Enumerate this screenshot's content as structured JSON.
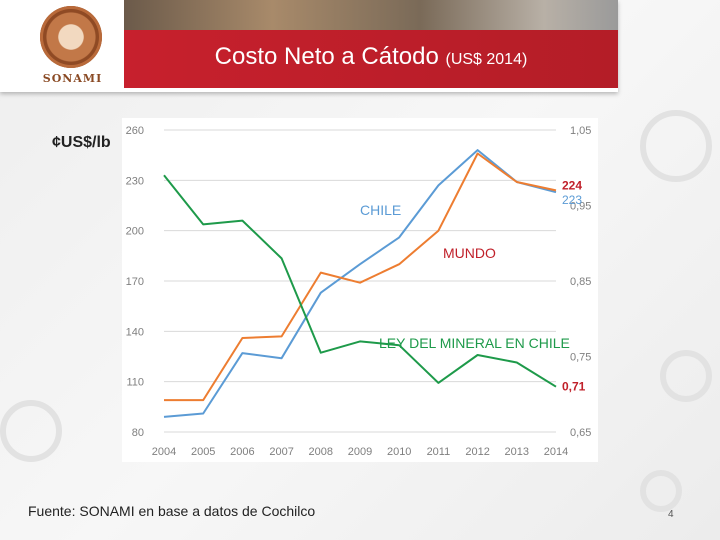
{
  "header": {
    "logo_text": "SONAMI",
    "title_main": "Costo Neto a Cátodo",
    "title_sub": "(US$ 2014)"
  },
  "unit_label": "¢US$/lb",
  "footer": {
    "source": "Fuente: SONAMI en base a datos de Cochilco",
    "page_number": "4"
  },
  "colors": {
    "chile": "#5b9bd5",
    "mundo": "#ed7d31",
    "ley": "#1e9a4a",
    "title_band": "#c7202d",
    "label_red": "#c0202a"
  },
  "chart_data": {
    "type": "line",
    "title": "Costo Neto a Cátodo (US$ 2014)",
    "x": [
      "2004",
      "2005",
      "2006",
      "2007",
      "2008",
      "2009",
      "2010",
      "2011",
      "2012",
      "2013",
      "2014"
    ],
    "y_left": {
      "label": "¢US$/lb",
      "range": [
        80,
        260
      ],
      "ticks": [
        "80",
        "110",
        "140",
        "170",
        "200",
        "230",
        "260"
      ]
    },
    "y_right": {
      "range": [
        0.65,
        1.05
      ],
      "ticks": [
        "0,65",
        "0,75",
        "0,85",
        "0,95",
        "1,05"
      ]
    },
    "series": [
      {
        "name": "CHILE",
        "axis": "left",
        "color": "#5b9bd5",
        "values": [
          89,
          91,
          127,
          124,
          163,
          180,
          196,
          227,
          248,
          229,
          223
        ],
        "end_label": "223"
      },
      {
        "name": "MUNDO",
        "axis": "left",
        "color": "#ed7d31",
        "values": [
          99,
          99,
          136,
          137,
          175,
          169,
          180,
          200,
          246,
          229,
          224
        ],
        "end_label": "224"
      },
      {
        "name": "LEY DEL MINERAL EN CHILE",
        "axis": "right",
        "color": "#1e9a4a",
        "values": [
          0.99,
          0.925,
          0.93,
          0.88,
          0.755,
          0.77,
          0.765,
          0.715,
          0.752,
          0.742,
          0.71
        ],
        "end_label": "0,71"
      }
    ],
    "grid": true,
    "legend": "inline labels"
  }
}
